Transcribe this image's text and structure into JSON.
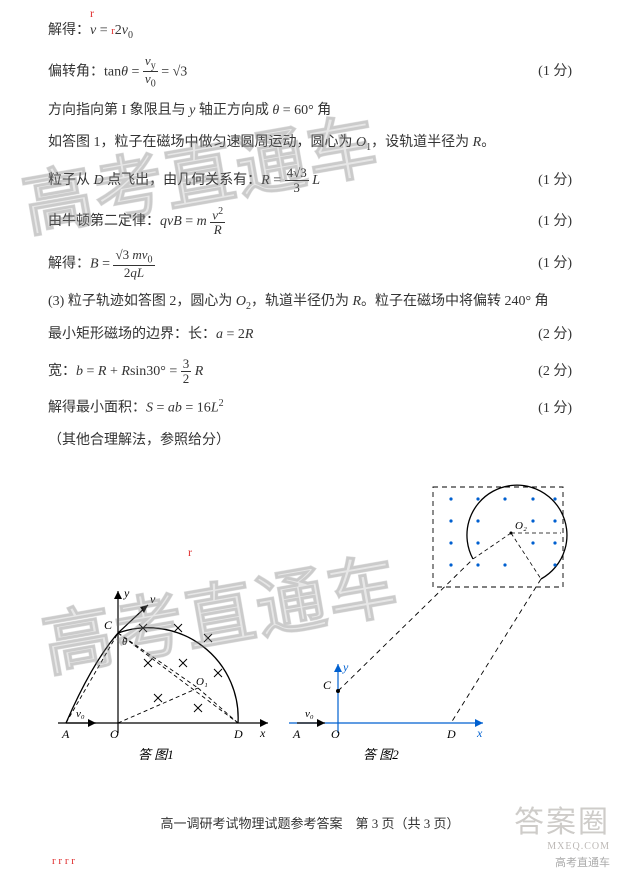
{
  "marks": {
    "topAccent": "r",
    "blAccent": "r  r\nr r"
  },
  "lines": [
    {
      "html": "解得：<i>v</i> = <span class='accent-red' style='font-size:11px'>r</span>2<i>v</i><sub>0</sub>",
      "score": ""
    },
    {
      "html": "偏转角：tan<i>θ</i> = <span class='frac'><span class='num'><i>v</i><sub>y</sub></span><span class='den'><i>v</i><sub>0</sub></span></span> = √3",
      "score": "(1 分)"
    },
    {
      "html": "方向指向第 I 象限且与 <i>y</i> 轴正方向成 <i>θ</i> = 60° 角",
      "score": ""
    },
    {
      "html": "如答图 1，粒子在磁场中做匀速圆周运动，圆心为 <i>O</i><sub>1</sub>，设轨道半径为 <i>R</i>。",
      "score": ""
    },
    {
      "html": "粒子从 <i>D</i> 点飞出，由几何关系有：<i>R</i> = <span class='frac'><span class='num'>4√3</span><span class='den'>3</span></span> <i>L</i>",
      "score": "(1 分)"
    },
    {
      "html": "由牛顿第二定律：<i>qvB</i> = <i>m</i> <span class='frac'><span class='num'><i>v</i><sup>2</sup></span><span class='den'><i>R</i></span></span>",
      "score": "(1 分)"
    },
    {
      "html": "解得：<i>B</i> = <span class='frac'><span class='num'>√3 <i>mv</i><sub>0</sub></span><span class='den'>2<i>qL</i></span></span>",
      "score": "(1 分)"
    },
    {
      "html": "(3) 粒子轨迹如答图 2，圆心为 <i>O</i><sub>2</sub>，轨道半径仍为 <i>R</i>。粒子在磁场中将偏转 240° 角",
      "score": ""
    },
    {
      "html": "最小矩形磁场的边界：长：<i>a</i> = 2<i>R</i>",
      "score": "(2 分)"
    },
    {
      "html": "宽：<i>b</i> = <i>R</i> + <i>R</i>sin30° = <span class='frac'><span class='num'>3</span><span class='den'>2</span></span> <i>R</i>",
      "score": "(2 分)"
    },
    {
      "html": "解得最小面积：<i>S</i> = <i>ab</i> = 16<i>L</i><sup>2</sup>",
      "score": "(1 分)"
    },
    {
      "html": "（其他合理解法，参照给分）",
      "score": ""
    }
  ],
  "diagram": {
    "fig1": {
      "label": "答 图1",
      "axis_color": "#000000",
      "dash_color": "#000000",
      "cross_color": "#000000",
      "letters": {
        "A": "A",
        "O": "O",
        "C": "C",
        "D": "D",
        "x": "x",
        "y": "y",
        "v": "v",
        "v0": "v₀",
        "theta": "θ",
        "O1": "O₁"
      }
    },
    "fig2": {
      "label": "答 图2",
      "axis_color": "#0060d0",
      "dot_color": "#0060d0",
      "rect_color": "#000000",
      "letters": {
        "A": "A",
        "O": "O",
        "C": "C",
        "D": "D",
        "x": "x",
        "y": "y",
        "v0": "v₀",
        "O2": "O₂"
      }
    },
    "accent_mark": "r"
  },
  "watermark": "高考直通车",
  "footer": "高一调研考试物理试题参考答案　第 3 页（共 3 页）",
  "brLogo": {
    "daan": "答案圈",
    "mxe": "MXEQ.COM",
    "gkc": "高考直通车"
  },
  "colors": {
    "text": "#333333",
    "accent": "#e03030",
    "blue": "#0060d0",
    "watermark": "rgba(120,120,120,0.18)",
    "background": "#ffffff"
  }
}
